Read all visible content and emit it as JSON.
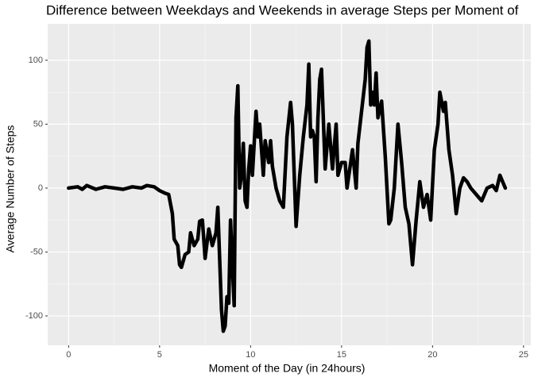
{
  "chart_data": {
    "type": "line",
    "title": "Difference between Weekdays and Weekends in average Steps per Moment of",
    "x_label": "Moment of the Day (in 24hours)",
    "y_label": "Average Number of Steps",
    "xlim": [
      -1.15,
      25.4
    ],
    "ylim": [
      -123,
      128.5
    ],
    "xticks": [
      0,
      5,
      10,
      15,
      20,
      25
    ],
    "yticks": [
      -100,
      -50,
      0,
      50,
      100
    ],
    "grid": true,
    "series": [
      {
        "color": "#000000",
        "x": [
          0,
          0.5,
          0.75,
          1,
          1.5,
          2,
          2.5,
          3,
          3.5,
          4,
          4.3,
          4.7,
          5,
          5.3,
          5.5,
          5.7,
          5.8,
          6,
          6.1,
          6.2,
          6.4,
          6.6,
          6.7,
          6.9,
          7.1,
          7.2,
          7.35,
          7.5,
          7.7,
          7.9,
          8.1,
          8.2,
          8.4,
          8.5,
          8.6,
          8.7,
          8.8,
          8.9,
          9.0,
          9.1,
          9.2,
          9.3,
          9.4,
          9.5,
          9.6,
          9.7,
          9.8,
          9.9,
          10.0,
          10.1,
          10.3,
          10.4,
          10.5,
          10.7,
          10.8,
          11.0,
          11.1,
          11.2,
          11.4,
          11.6,
          11.8,
          12.0,
          12.2,
          12.3,
          12.5,
          12.7,
          12.9,
          13.1,
          13.2,
          13.3,
          13.4,
          13.5,
          13.6,
          13.7,
          13.8,
          13.9,
          14.1,
          14.3,
          14.5,
          14.7,
          14.8,
          15.0,
          15.2,
          15.3,
          15.4,
          15.6,
          15.8,
          15.9,
          16.1,
          16.3,
          16.4,
          16.5,
          16.6,
          16.7,
          16.8,
          16.9,
          17.0,
          17.2,
          17.4,
          17.6,
          17.7,
          17.9,
          18.1,
          18.3,
          18.5,
          18.7,
          18.9,
          19.1,
          19.3,
          19.5,
          19.7,
          19.9,
          20.1,
          20.3,
          20.4,
          20.6,
          20.7,
          20.9,
          21.1,
          21.3,
          21.5,
          21.7,
          21.9,
          22.1,
          22.4,
          22.7,
          23.0,
          23.3,
          23.5,
          23.7,
          24.0
        ],
        "values": [
          0,
          1,
          -1,
          2,
          -1,
          1,
          0,
          -1,
          1,
          0,
          2,
          1,
          -2,
          -4,
          -5,
          -20,
          -40,
          -45,
          -60,
          -62,
          -52,
          -50,
          -35,
          -45,
          -40,
          -26,
          -25,
          -55,
          -32,
          -45,
          -35,
          -15,
          -95,
          -112,
          -108,
          -85,
          -90,
          -25,
          -60,
          -92,
          55,
          80,
          0,
          10,
          35,
          -10,
          -15,
          15,
          33,
          10,
          60,
          40,
          50,
          10,
          37,
          20,
          37,
          17,
          0,
          -10,
          -15,
          40,
          67,
          50,
          -30,
          10,
          40,
          65,
          97,
          40,
          45,
          40,
          5,
          55,
          85,
          93,
          15,
          50,
          15,
          50,
          10,
          20,
          20,
          0,
          10,
          30,
          0,
          35,
          60,
          85,
          110,
          115,
          65,
          75,
          65,
          90,
          55,
          68,
          25,
          -28,
          -25,
          0,
          50,
          20,
          -15,
          -28,
          -60,
          -25,
          5,
          -15,
          -5,
          -25,
          30,
          50,
          75,
          60,
          67,
          30,
          10,
          -20,
          0,
          8,
          5,
          0,
          -5,
          -10,
          0,
          2,
          -2,
          10,
          0
        ]
      }
    ]
  }
}
